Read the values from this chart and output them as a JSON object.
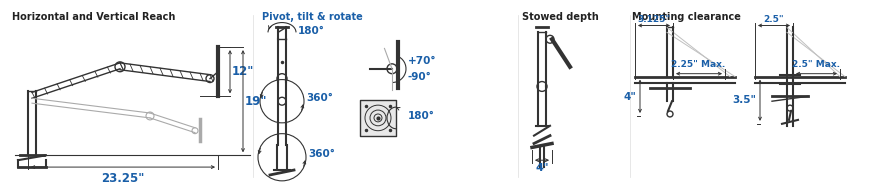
{
  "bg_color": "#ffffff",
  "section1_title": "Horizontal and Vertical Reach",
  "section2_title": "Pivot, tilt & rotate",
  "section3_title": "Stowed depth",
  "section4_title": "Mounting clearance",
  "title_color_dark": "#222222",
  "title_color_blue": "#1a5fa8",
  "drawing_color": "#333333",
  "dim_color": "#1a5fa8",
  "dim_line_color": "#333333",
  "gray_color": "#aaaaaa",
  "s1_dims": {
    "width": "23.25\"",
    "height1": "12\"",
    "height2": "19\""
  },
  "s2_dims": {
    "top": "180°",
    "mid1": "360°",
    "bot": "360°",
    "tilt_pos": "+70°",
    "tilt_neg": "-90°",
    "rotate": "180°"
  },
  "s3_dims": {
    "width": "4\""
  },
  "s4_dims": {
    "top_left": "3.125\"",
    "mid_left": "2.25\" Max.",
    "bot_left": "4\"",
    "top_right": "2.5\"",
    "mid_right": "2.5\" Max.",
    "bot_right": "3.5\""
  }
}
